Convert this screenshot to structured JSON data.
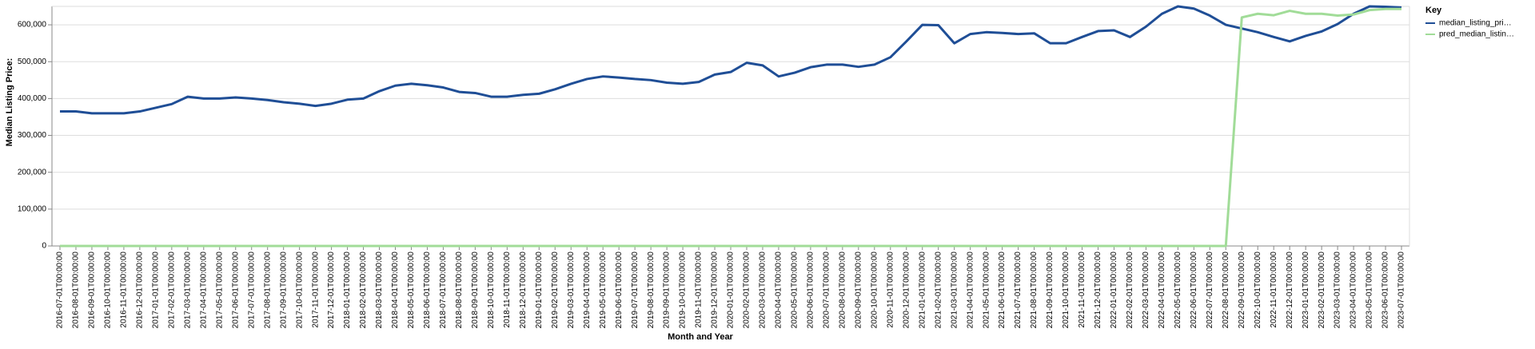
{
  "chart_data": {
    "type": "line",
    "x_label": "Month and Year",
    "y_label": "Median Listing Price:",
    "legend_title": "Key",
    "legend": "top-right",
    "grid": true,
    "categories": [
      "2016-07-01T00:00:00",
      "2016-08-01T00:00:00",
      "2016-09-01T00:00:00",
      "2016-10-01T00:00:00",
      "2016-11-01T00:00:00",
      "2016-12-01T00:00:00",
      "2017-01-01T00:00:00",
      "2017-02-01T00:00:00",
      "2017-03-01T00:00:00",
      "2017-04-01T00:00:00",
      "2017-05-01T00:00:00",
      "2017-06-01T00:00:00",
      "2017-07-01T00:00:00",
      "2017-08-01T00:00:00",
      "2017-09-01T00:00:00",
      "2017-10-01T00:00:00",
      "2017-11-01T00:00:00",
      "2017-12-01T00:00:00",
      "2018-01-01T00:00:00",
      "2018-02-01T00:00:00",
      "2018-03-01T00:00:00",
      "2018-04-01T00:00:00",
      "2018-05-01T00:00:00",
      "2018-06-01T00:00:00",
      "2018-07-01T00:00:00",
      "2018-08-01T00:00:00",
      "2018-09-01T00:00:00",
      "2018-10-01T00:00:00",
      "2018-11-01T00:00:00",
      "2018-12-01T00:00:00",
      "2019-01-01T00:00:00",
      "2019-02-01T00:00:00",
      "2019-03-01T00:00:00",
      "2019-04-01T00:00:00",
      "2019-05-01T00:00:00",
      "2019-06-01T00:00:00",
      "2019-07-01T00:00:00",
      "2019-08-01T00:00:00",
      "2019-09-01T00:00:00",
      "2019-10-01T00:00:00",
      "2019-11-01T00:00:00",
      "2019-12-01T00:00:00",
      "2020-01-01T00:00:00",
      "2020-02-01T00:00:00",
      "2020-03-01T00:00:00",
      "2020-04-01T00:00:00",
      "2020-05-01T00:00:00",
      "2020-06-01T00:00:00",
      "2020-07-01T00:00:00",
      "2020-08-01T00:00:00",
      "2020-09-01T00:00:00",
      "2020-10-01T00:00:00",
      "2020-11-01T00:00:00",
      "2020-12-01T00:00:00",
      "2021-01-01T00:00:00",
      "2021-02-01T00:00:00",
      "2021-03-01T00:00:00",
      "2021-04-01T00:00:00",
      "2021-05-01T00:00:00",
      "2021-06-01T00:00:00",
      "2021-07-01T00:00:00",
      "2021-08-01T00:00:00",
      "2021-09-01T00:00:00",
      "2021-10-01T00:00:00",
      "2021-11-01T00:00:00",
      "2021-12-01T00:00:00",
      "2022-01-01T00:00:00",
      "2022-02-01T00:00:00",
      "2022-03-01T00:00:00",
      "2022-04-01T00:00:00",
      "2022-05-01T00:00:00",
      "2022-06-01T00:00:00",
      "2022-07-01T00:00:00",
      "2022-08-01T00:00:00",
      "2022-09-01T00:00:00",
      "2022-10-01T00:00:00",
      "2022-11-01T00:00:00",
      "2022-12-01T00:00:00",
      "2023-01-01T00:00:00",
      "2023-02-01T00:00:00",
      "2023-03-01T00:00:00",
      "2023-04-01T00:00:00",
      "2023-05-01T00:00:00",
      "2023-06-01T00:00:00",
      "2023-07-01T00:00:00"
    ],
    "series": [
      {
        "name": "median_listing_pri…",
        "color": "#1f4e96",
        "values": [
          365000,
          365000,
          360000,
          360000,
          360000,
          365000,
          375000,
          385000,
          405000,
          400000,
          400000,
          403000,
          400000,
          396000,
          390000,
          386000,
          380000,
          386000,
          397000,
          400000,
          420000,
          435000,
          440000,
          436000,
          430000,
          418000,
          415000,
          405000,
          405000,
          410000,
          413000,
          425000,
          440000,
          453000,
          460000,
          457000,
          453000,
          450000,
          443000,
          440000,
          445000,
          465000,
          472000,
          497000,
          490000,
          460000,
          470000,
          485000,
          492000,
          492000,
          486000,
          492000,
          512000,
          555000,
          600000,
          599000,
          550000,
          575000,
          580000,
          578000,
          575000,
          577000,
          550000,
          550000,
          567000,
          583000,
          585000,
          567000,
          595000,
          630000,
          650000,
          644000,
          625000,
          600000,
          590000,
          580000,
          567000,
          555000,
          570000,
          582000,
          602000,
          630000,
          650000,
          649000,
          647000
        ]
      },
      {
        "name": "pred_median_listin…",
        "color": "#a1dc98",
        "values": [
          0,
          0,
          0,
          0,
          0,
          0,
          0,
          0,
          0,
          0,
          0,
          0,
          0,
          0,
          0,
          0,
          0,
          0,
          0,
          0,
          0,
          0,
          0,
          0,
          0,
          0,
          0,
          0,
          0,
          0,
          0,
          0,
          0,
          0,
          0,
          0,
          0,
          0,
          0,
          0,
          0,
          0,
          0,
          0,
          0,
          0,
          0,
          0,
          0,
          0,
          0,
          0,
          0,
          0,
          0,
          0,
          0,
          0,
          0,
          0,
          0,
          0,
          0,
          0,
          0,
          0,
          0,
          0,
          0,
          0,
          0,
          0,
          0,
          0,
          620000,
          630000,
          626000,
          638000,
          630000,
          630000,
          625000,
          628000,
          640000,
          643000,
          643000
        ]
      }
    ],
    "ylim": [
      0,
      650000
    ],
    "yticks": [
      0,
      {
        "value": 100000,
        "label": "100,000"
      },
      {
        "value": 200000,
        "label": "200,000"
      },
      {
        "value": 300000,
        "label": "300,000"
      },
      {
        "value": 400000,
        "label": "400,000"
      },
      {
        "value": 500000,
        "label": "500,000"
      },
      {
        "value": 600000,
        "label": "600,000"
      }
    ]
  }
}
